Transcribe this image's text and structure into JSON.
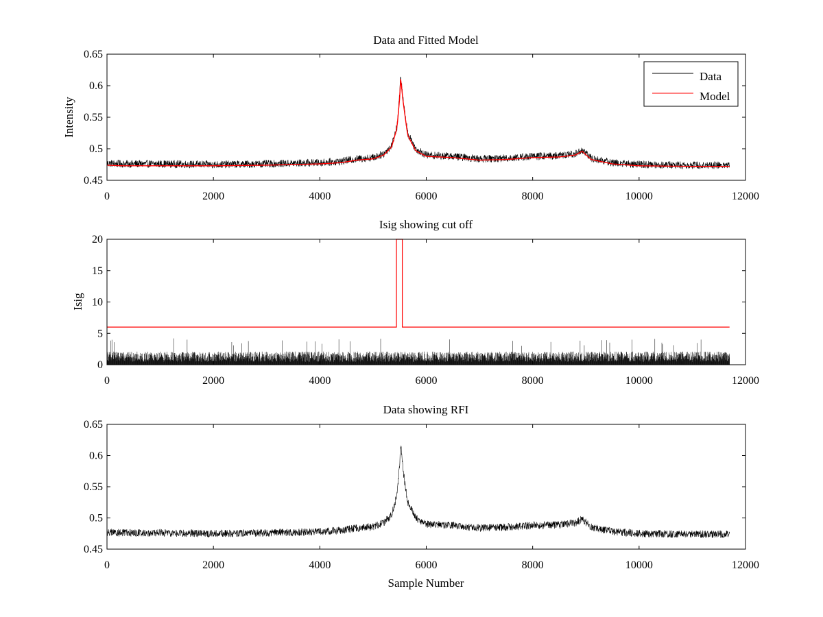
{
  "chart_data": [
    {
      "type": "line",
      "title": "Data and Fitted Model",
      "xlabel": "",
      "ylabel": "Intensity",
      "xlim": [
        0,
        12000
      ],
      "ylim": [
        0.45,
        0.65
      ],
      "xticks": [
        0,
        2000,
        4000,
        6000,
        8000,
        10000,
        12000
      ],
      "yticks": [
        0.45,
        0.5,
        0.55,
        0.6,
        0.65
      ],
      "legend": {
        "position": "top-right",
        "entries": [
          "Data",
          "Model"
        ]
      },
      "series": [
        {
          "name": "Data",
          "color": "#000000",
          "kind": "noisy",
          "noise_amplitude": 0.006,
          "noise_falloff": 0.12,
          "x": [
            0,
            300,
            1000,
            2000,
            3000,
            4000,
            4400,
            4700,
            5000,
            5200,
            5350,
            5450,
            5500,
            5520,
            5560,
            5650,
            5800,
            6000,
            6500,
            7000,
            7500,
            8000,
            8500,
            8800,
            8930,
            9100,
            9500,
            10000,
            11000,
            11700
          ],
          "values": [
            0.477,
            0.476,
            0.476,
            0.475,
            0.476,
            0.478,
            0.48,
            0.484,
            0.486,
            0.492,
            0.505,
            0.535,
            0.585,
            0.615,
            0.58,
            0.525,
            0.5,
            0.49,
            0.488,
            0.484,
            0.485,
            0.488,
            0.489,
            0.492,
            0.498,
            0.485,
            0.478,
            0.475,
            0.474,
            0.474
          ]
        },
        {
          "name": "Model",
          "color": "#ff0000",
          "kind": "smooth",
          "x": [
            0,
            300,
            1000,
            2000,
            3000,
            4000,
            4400,
            4700,
            5000,
            5200,
            5350,
            5450,
            5500,
            5520,
            5560,
            5650,
            5800,
            6000,
            6500,
            7000,
            7500,
            8000,
            8500,
            8800,
            8930,
            9100,
            9500,
            10000,
            11000,
            11700
          ],
          "values": [
            0.474,
            0.473,
            0.473,
            0.473,
            0.474,
            0.476,
            0.478,
            0.482,
            0.484,
            0.49,
            0.503,
            0.533,
            0.58,
            0.613,
            0.578,
            0.522,
            0.497,
            0.488,
            0.486,
            0.482,
            0.483,
            0.486,
            0.487,
            0.49,
            0.496,
            0.483,
            0.476,
            0.473,
            0.472,
            0.472
          ]
        }
      ]
    },
    {
      "type": "line",
      "title": "Isig showing cut off",
      "xlabel": "",
      "ylabel": "Isig",
      "xlim": [
        0,
        12000
      ],
      "ylim": [
        0,
        20
      ],
      "xticks": [
        0,
        2000,
        4000,
        6000,
        8000,
        10000,
        12000
      ],
      "yticks": [
        0,
        5,
        10,
        15,
        20
      ],
      "series": [
        {
          "name": "Isig",
          "color": "#000000",
          "kind": "noise-bars",
          "x_range": [
            0,
            11700
          ],
          "typical": 1.5,
          "max": 4.2
        },
        {
          "name": "Cut off",
          "color": "#ff0000",
          "kind": "step",
          "x": [
            0,
            5440,
            5440,
            5550,
            5550,
            11700
          ],
          "values": [
            6,
            6,
            20,
            20,
            6,
            6
          ]
        }
      ]
    },
    {
      "type": "line",
      "title": "Data showing RFI",
      "xlabel": "Sample Number",
      "ylabel": "",
      "xlim": [
        0,
        12000
      ],
      "ylim": [
        0.45,
        0.65
      ],
      "xticks": [
        0,
        2000,
        4000,
        6000,
        8000,
        10000,
        12000
      ],
      "yticks": [
        0.45,
        0.5,
        0.55,
        0.6,
        0.65
      ],
      "series": [
        {
          "name": "Data",
          "color": "#000000",
          "kind": "noisy",
          "noise_amplitude": 0.006,
          "noise_falloff": 0.12,
          "x": [
            0,
            300,
            1000,
            2000,
            3000,
            4000,
            4400,
            4700,
            5000,
            5200,
            5350,
            5450,
            5500,
            5520,
            5560,
            5650,
            5800,
            6000,
            6500,
            7000,
            7500,
            8000,
            8500,
            8800,
            8930,
            9100,
            9500,
            10000,
            11000,
            11700
          ],
          "values": [
            0.477,
            0.476,
            0.476,
            0.475,
            0.476,
            0.478,
            0.48,
            0.484,
            0.486,
            0.492,
            0.505,
            0.535,
            0.585,
            0.62,
            0.58,
            0.525,
            0.5,
            0.49,
            0.488,
            0.484,
            0.485,
            0.488,
            0.489,
            0.492,
            0.498,
            0.485,
            0.478,
            0.475,
            0.474,
            0.474
          ]
        }
      ]
    }
  ]
}
